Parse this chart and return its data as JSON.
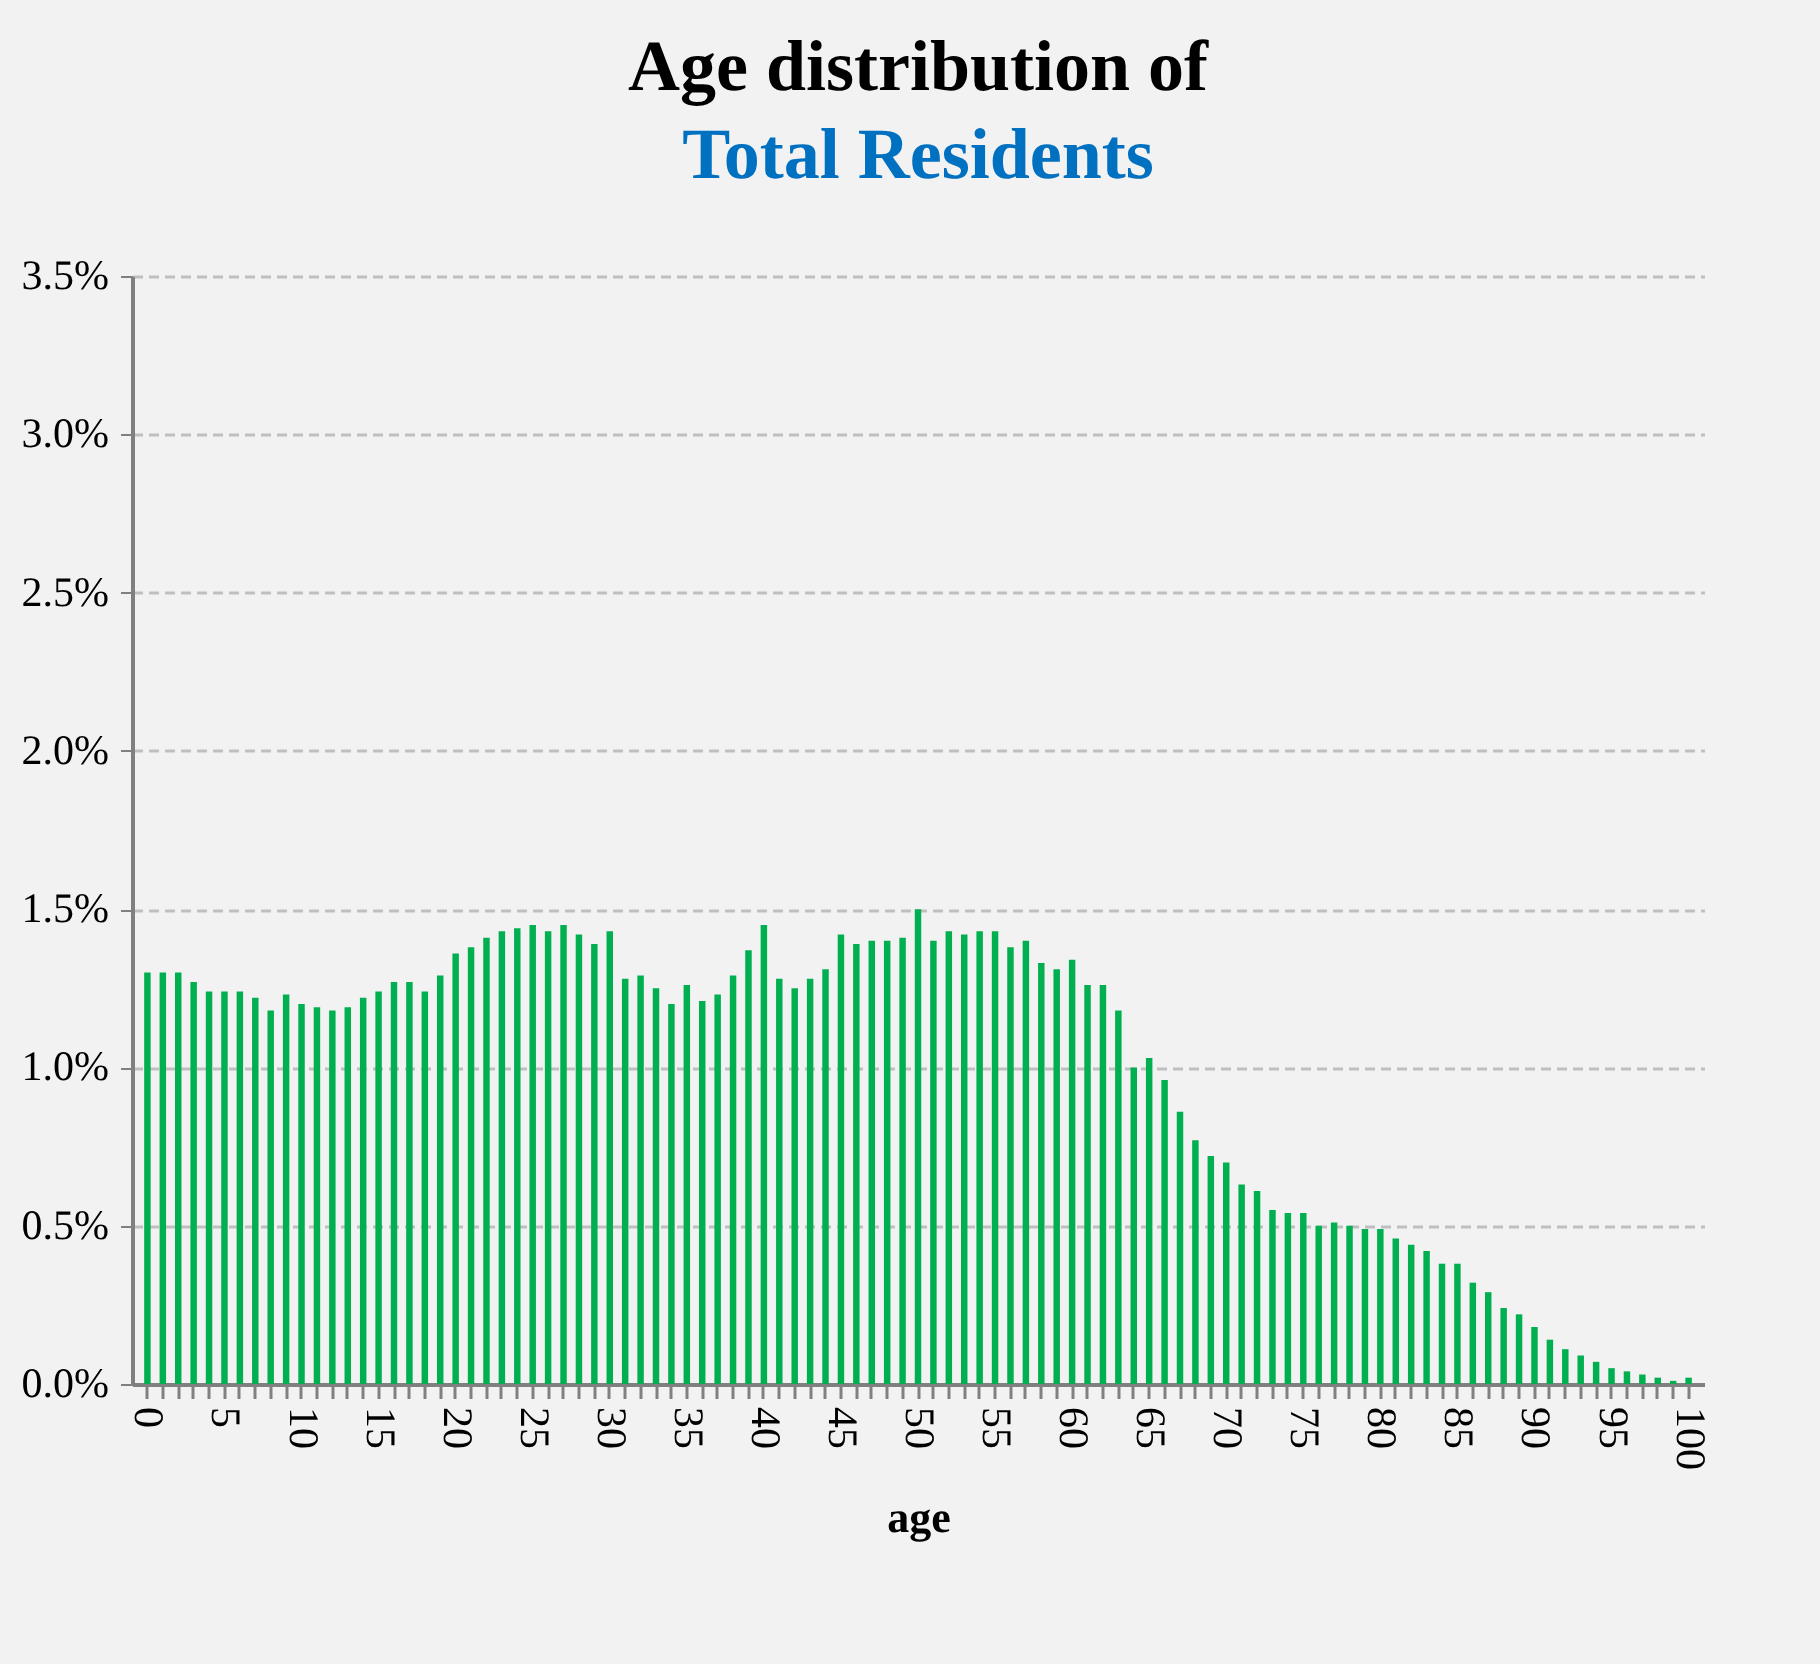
{
  "chart_data": {
    "type": "bar",
    "title": "Age distribution of",
    "subtitle": "Total Residents",
    "xlabel": "age",
    "categories": [
      "0",
      null,
      null,
      null,
      null,
      "5",
      null,
      null,
      null,
      null,
      "10",
      null,
      null,
      null,
      null,
      "15",
      null,
      null,
      null,
      null,
      "20",
      null,
      null,
      null,
      null,
      "25",
      null,
      null,
      null,
      null,
      "30",
      null,
      null,
      null,
      null,
      "35",
      null,
      null,
      null,
      null,
      "40",
      null,
      null,
      null,
      null,
      "45",
      null,
      null,
      null,
      null,
      "50",
      null,
      null,
      null,
      null,
      "55",
      null,
      null,
      null,
      null,
      "60",
      null,
      null,
      null,
      null,
      "65",
      null,
      null,
      null,
      null,
      "70",
      null,
      null,
      null,
      null,
      "75",
      null,
      null,
      null,
      null,
      "80",
      null,
      null,
      null,
      null,
      "85",
      null,
      null,
      null,
      null,
      "90",
      null,
      null,
      null,
      null,
      "95",
      null,
      null,
      null,
      null,
      "100"
    ],
    "values": [
      1.3,
      1.3,
      1.3,
      1.27,
      1.24,
      1.24,
      1.24,
      1.22,
      1.18,
      1.23,
      1.2,
      1.19,
      1.18,
      1.19,
      1.22,
      1.24,
      1.27,
      1.27,
      1.24,
      1.29,
      1.36,
      1.38,
      1.41,
      1.43,
      1.44,
      1.45,
      1.43,
      1.45,
      1.42,
      1.39,
      1.43,
      1.28,
      1.29,
      1.25,
      1.2,
      1.26,
      1.21,
      1.23,
      1.29,
      1.37,
      1.45,
      1.28,
      1.25,
      1.28,
      1.31,
      1.42,
      1.39,
      1.4,
      1.4,
      1.41,
      1.5,
      1.4,
      1.43,
      1.42,
      1.43,
      1.43,
      1.38,
      1.4,
      1.33,
      1.31,
      1.34,
      1.26,
      1.26,
      1.18,
      1.0,
      1.03,
      0.96,
      0.86,
      0.77,
      0.72,
      0.7,
      0.63,
      0.61,
      0.55,
      0.54,
      0.54,
      0.5,
      0.51,
      0.5,
      0.49,
      0.49,
      0.46,
      0.44,
      0.42,
      0.38,
      0.38,
      0.32,
      0.29,
      0.24,
      0.22,
      0.18,
      0.14,
      0.11,
      0.09,
      0.07,
      0.05,
      0.04,
      0.03,
      0.02,
      0.01,
      0.02
    ],
    "color": "#00b050",
    "ylim": [
      0,
      3.5
    ],
    "yticks": [
      {
        "value": 0,
        "label": "0.0%"
      },
      {
        "value": 0.5,
        "label": "0.5%"
      },
      {
        "value": 1,
        "label": "1.0%"
      },
      {
        "value": 1.5,
        "label": "1.5%"
      },
      {
        "value": 2,
        "label": "2.0%"
      },
      {
        "value": 2.5,
        "label": "2.5%"
      },
      {
        "value": 3,
        "label": "3.0%"
      },
      {
        "value": 3.5,
        "label": "3.5%"
      }
    ],
    "grid": "y"
  }
}
